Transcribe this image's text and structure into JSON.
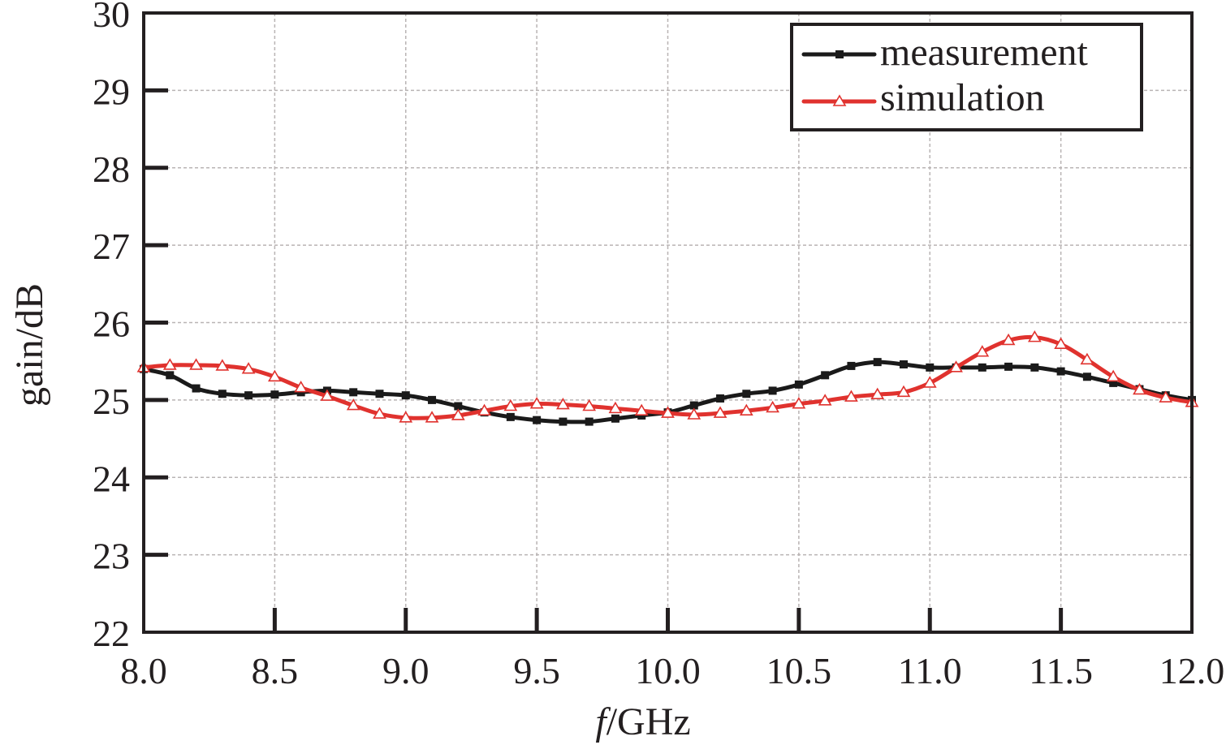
{
  "chart_data": {
    "type": "line",
    "xlabel_italic": "f",
    "xlabel_rest": "/GHz",
    "ylabel": "gain/dB",
    "xlim": [
      8.0,
      12.0
    ],
    "ylim": [
      22,
      30
    ],
    "xticks": [
      8.0,
      8.5,
      9.0,
      9.5,
      10.0,
      10.5,
      11.0,
      11.5,
      12.0
    ],
    "xtick_labels": [
      "8.0",
      "8.5",
      "9.0",
      "9.5",
      "10.0",
      "10.5",
      "11.0",
      "11.5",
      "12.0"
    ],
    "yticks": [
      22,
      23,
      24,
      25,
      26,
      27,
      28,
      29,
      30
    ],
    "ytick_labels": [
      "22",
      "23",
      "24",
      "25",
      "26",
      "27",
      "28",
      "29",
      "30"
    ],
    "grid": true,
    "legend_position": "top-right",
    "x": [
      8.0,
      8.1,
      8.2,
      8.3,
      8.4,
      8.5,
      8.6,
      8.7,
      8.8,
      8.9,
      9.0,
      9.1,
      9.2,
      9.3,
      9.4,
      9.5,
      9.6,
      9.7,
      9.8,
      9.9,
      10.0,
      10.1,
      10.2,
      10.3,
      10.4,
      10.5,
      10.6,
      10.7,
      10.8,
      10.9,
      11.0,
      11.1,
      11.2,
      11.3,
      11.4,
      11.5,
      11.6,
      11.7,
      11.8,
      11.9,
      12.0
    ],
    "series": [
      {
        "name": "measurement",
        "color": "#1a1a1a",
        "marker": "square",
        "values": [
          25.4,
          25.32,
          25.15,
          25.08,
          25.06,
          25.07,
          25.1,
          25.12,
          25.1,
          25.08,
          25.06,
          25.0,
          24.92,
          24.84,
          24.78,
          24.74,
          24.72,
          24.72,
          24.76,
          24.8,
          24.84,
          24.93,
          25.02,
          25.08,
          25.12,
          25.2,
          25.32,
          25.44,
          25.49,
          25.46,
          25.42,
          25.42,
          25.42,
          25.43,
          25.42,
          25.37,
          25.3,
          25.22,
          25.14,
          25.06,
          25.0
        ]
      },
      {
        "name": "simulation",
        "color": "#e0322e",
        "marker": "triangle",
        "values": [
          25.42,
          25.45,
          25.45,
          25.44,
          25.4,
          25.3,
          25.16,
          25.05,
          24.93,
          24.82,
          24.77,
          24.77,
          24.8,
          24.86,
          24.92,
          24.95,
          24.94,
          24.92,
          24.89,
          24.86,
          24.83,
          24.81,
          24.83,
          24.86,
          24.9,
          24.95,
          24.99,
          25.04,
          25.07,
          25.1,
          25.22,
          25.42,
          25.62,
          25.77,
          25.81,
          25.72,
          25.52,
          25.3,
          25.13,
          25.03,
          24.97
        ]
      }
    ]
  }
}
